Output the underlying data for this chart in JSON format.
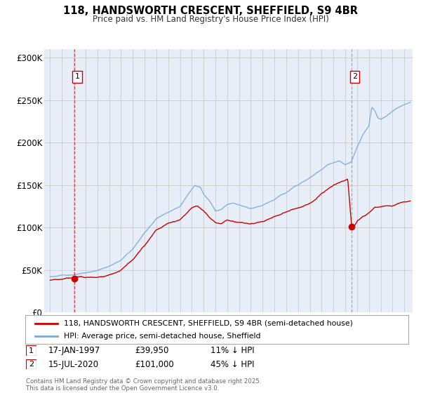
{
  "title_line1": "118, HANDSWORTH CRESCENT, SHEFFIELD, S9 4BR",
  "title_line2": "Price paid vs. HM Land Registry's House Price Index (HPI)",
  "ylim": [
    0,
    310000
  ],
  "yticks": [
    0,
    50000,
    100000,
    150000,
    200000,
    250000,
    300000
  ],
  "ytick_labels": [
    "£0",
    "£50K",
    "£100K",
    "£150K",
    "£200K",
    "£250K",
    "£300K"
  ],
  "xlim_start": 1994.5,
  "xlim_end": 2025.7,
  "xticks": [
    1995,
    1996,
    1997,
    1998,
    1999,
    2000,
    2001,
    2002,
    2003,
    2004,
    2005,
    2006,
    2007,
    2008,
    2009,
    2010,
    2011,
    2012,
    2013,
    2014,
    2015,
    2016,
    2017,
    2018,
    2019,
    2020,
    2021,
    2022,
    2023,
    2024,
    2025
  ],
  "sale1_x": 1997.04,
  "sale1_y": 39950,
  "sale2_x": 2020.54,
  "sale2_y": 101000,
  "legend_line1": "118, HANDSWORTH CRESCENT, SHEFFIELD, S9 4BR (semi-detached house)",
  "legend_line2": "HPI: Average price, semi-detached house, Sheffield",
  "sale1_date": "17-JAN-1997",
  "sale1_price": "£39,950",
  "sale1_hpi": "11% ↓ HPI",
  "sale2_date": "15-JUL-2020",
  "sale2_price": "£101,000",
  "sale2_hpi": "45% ↓ HPI",
  "footnote": "Contains HM Land Registry data © Crown copyright and database right 2025.\nThis data is licensed under the Open Government Licence v3.0.",
  "hpi_color": "#7aaadd",
  "price_color": "#cc0000",
  "bg_color": "#e8eef8",
  "plot_bg": "#ffffff",
  "grid_color": "#cccccc"
}
